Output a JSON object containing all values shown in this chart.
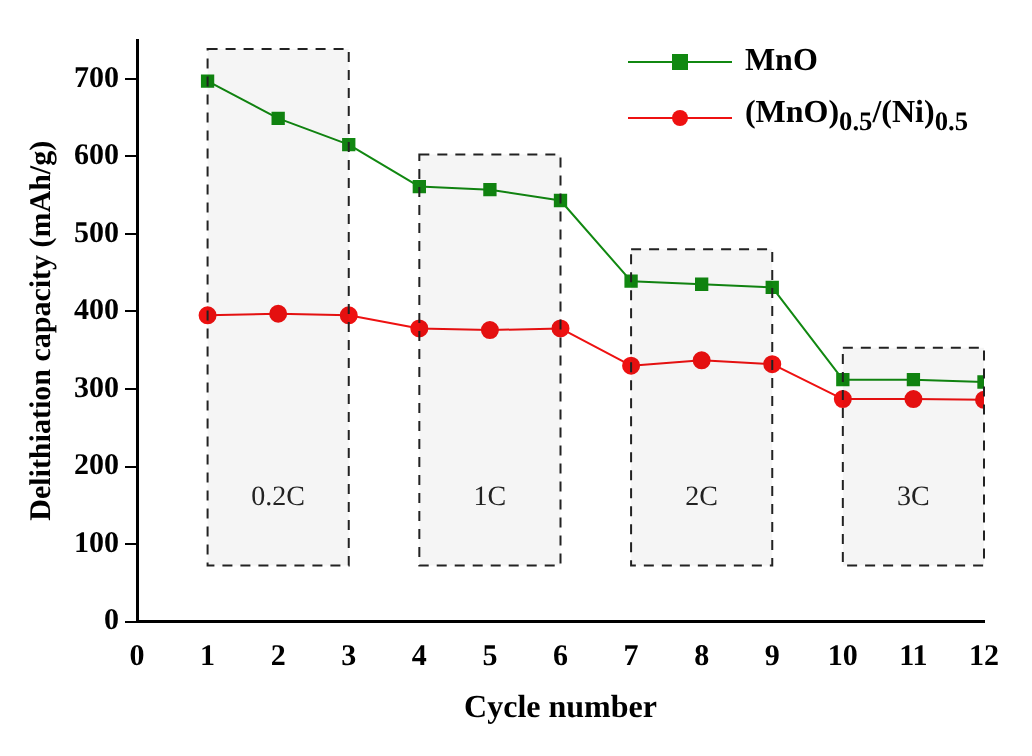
{
  "chart_data": {
    "type": "line",
    "xlabel": "Cycle number",
    "ylabel": "Delithiation capacity (mAh/g)",
    "x": [
      1,
      2,
      3,
      4,
      5,
      6,
      7,
      8,
      9,
      10,
      11,
      12
    ],
    "series": [
      {
        "name": "MnO",
        "color": "#118811",
        "marker": "square",
        "values": [
          697,
          649,
          615,
          561,
          557,
          543,
          439,
          435,
          431,
          312,
          312,
          309
        ]
      },
      {
        "name": "(MnO)$_{0.5}$/(Ni)$_{0.5}$",
        "color": "#ee1111",
        "marker": "circle",
        "values": [
          395,
          397,
          395,
          378,
          376,
          378,
          330,
          337,
          332,
          287,
          287,
          286
        ]
      }
    ],
    "xlim": [
      0,
      12
    ],
    "xticks": [
      0,
      1,
      2,
      3,
      4,
      5,
      6,
      7,
      8,
      9,
      10,
      11,
      12
    ],
    "ylim": [
      0,
      750
    ],
    "yticks": [
      0,
      100,
      200,
      300,
      400,
      500,
      600,
      700
    ],
    "bands": [
      {
        "axis": "x",
        "from": 1,
        "to": 3,
        "label": "0.2C"
      },
      {
        "axis": "x",
        "from": 4,
        "to": 6,
        "label": "1C"
      },
      {
        "axis": "x",
        "from": 7,
        "to": 9,
        "label": "2C"
      },
      {
        "axis": "x",
        "from": 10,
        "to": 12,
        "label": "3C"
      }
    ],
    "legend": "top right",
    "grid": false,
    "line_style": "solid"
  }
}
